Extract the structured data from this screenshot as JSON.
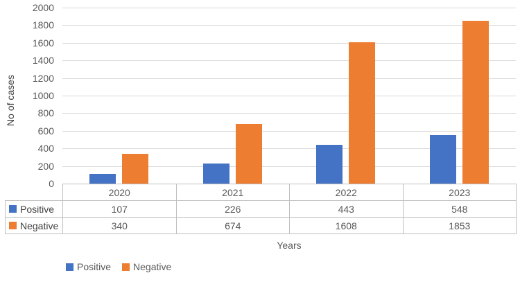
{
  "chart_data": {
    "type": "bar",
    "title": "",
    "categories": [
      "2020",
      "2021",
      "2022",
      "2023"
    ],
    "series": [
      {
        "name": "Positive",
        "color": "#4472C4",
        "values": [
          107,
          226,
          443,
          548
        ]
      },
      {
        "name": "Negative",
        "color": "#ED7D31",
        "values": [
          340,
          674,
          1608,
          1853
        ]
      }
    ],
    "xlabel": "Years",
    "ylabel": "No of cases",
    "ylim": [
      0,
      2000
    ],
    "ytick_step": 200,
    "grid": true,
    "legend_position": "bottom",
    "legend": [
      "Positive",
      "Negative"
    ],
    "data_table_shown": true
  },
  "colors": {
    "positive": "#4472C4",
    "negative": "#ED7D31",
    "gridline": "#D9D9D9",
    "table_border": "#BFBFBF",
    "tick_text": "#595959",
    "axis_title_text": "#404040",
    "background": "#FFFFFF"
  }
}
